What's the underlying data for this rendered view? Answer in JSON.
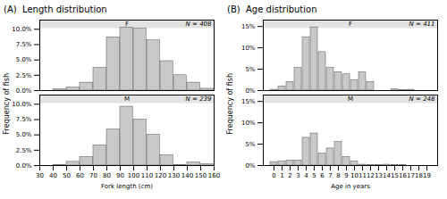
{
  "chart_data": [
    {
      "type": "bar",
      "title": "(A)  Length distribution",
      "ylabel": "Frequency of fish",
      "subtitle": "F",
      "annotations": [
        "N = 408"
      ],
      "x": [
        30,
        40,
        50,
        60,
        70,
        80,
        90,
        100,
        110,
        120,
        130,
        140,
        150
      ],
      "values": [
        0.0,
        0.002,
        0.005,
        0.013,
        0.037,
        0.087,
        0.103,
        0.101,
        0.082,
        0.048,
        0.025,
        0.013,
        0.003
      ],
      "color": "#c8c8c8",
      "xlim": [
        30,
        160
      ],
      "xticks": [
        30,
        40,
        50,
        60,
        70,
        80,
        90,
        100,
        110,
        120,
        130,
        140,
        150,
        160
      ],
      "ylim": [
        0,
        0.115
      ],
      "yticks": [
        {
          "value": 0.0,
          "label": "0.0%"
        },
        {
          "value": 0.025,
          "label": "2.5%"
        },
        {
          "value": 0.05,
          "label": "5.0%"
        },
        {
          "value": 0.075,
          "label": "7.5%"
        },
        {
          "value": 0.1,
          "label": "10.0%"
        }
      ],
      "grid": false,
      "tick_labels": "y"
    },
    {
      "type": "bar",
      "xlabel": "Fork length (cm)",
      "subtitle": "M",
      "annotations": [
        "N = 239"
      ],
      "x": [
        30,
        40,
        50,
        60,
        70,
        80,
        90,
        100,
        110,
        120,
        130,
        140,
        150
      ],
      "values": [
        0.0,
        0.001,
        0.006,
        0.014,
        0.033,
        0.059,
        0.096,
        0.075,
        0.05,
        0.017,
        0.001,
        0.005,
        0.002
      ],
      "color": "#c8c8c8",
      "xlim": [
        30,
        160
      ],
      "xticks": [
        30,
        40,
        50,
        60,
        70,
        80,
        90,
        100,
        110,
        120,
        130,
        140,
        150,
        160
      ],
      "ylim": [
        0,
        0.115
      ],
      "yticks": [
        {
          "value": 0.0,
          "label": "0.0%"
        },
        {
          "value": 0.025,
          "label": "2.5%"
        },
        {
          "value": 0.05,
          "label": "5.0%"
        },
        {
          "value": 0.075,
          "label": "7.5%"
        },
        {
          "value": 0.1,
          "label": "10.0%"
        }
      ],
      "grid": false
    },
    {
      "type": "bar",
      "title": "(B)  Age distribution",
      "ylabel": "Frequency of fish",
      "subtitle": "F",
      "annotations": [
        "N = 411"
      ],
      "categories": [
        "0",
        "1",
        "2",
        "3",
        "4",
        "5",
        "6",
        "7",
        "8",
        "9",
        "10",
        "11",
        "12",
        "13",
        "14",
        "15",
        "16",
        "17",
        "18",
        "19"
      ],
      "values": [
        0.002,
        0.01,
        0.02,
        0.053,
        0.125,
        0.148,
        0.09,
        0.053,
        0.043,
        0.038,
        0.024,
        0.043,
        0.02,
        0.0,
        0.0,
        0.003,
        0.001,
        0.002,
        0.0,
        0.0
      ],
      "color": "#c8c8c8",
      "ylim": [
        0,
        0.165
      ],
      "yticks": [
        {
          "value": 0.0,
          "label": "0%"
        },
        {
          "value": 0.05,
          "label": "5%"
        },
        {
          "value": 0.1,
          "label": "10%"
        },
        {
          "value": 0.15,
          "label": "15%"
        }
      ],
      "grid": false,
      "tick_labels": "y"
    },
    {
      "type": "bar",
      "xlabel": "Age in years",
      "subtitle": "M",
      "annotations": [
        "N = 248"
      ],
      "categories": [
        "0",
        "1",
        "2",
        "3",
        "4",
        "5",
        "6",
        "7",
        "8",
        "9",
        "10",
        "11",
        "12",
        "13",
        "14",
        "15",
        "16",
        "17",
        "18",
        "19"
      ],
      "values": [
        0.008,
        0.01,
        0.012,
        0.012,
        0.065,
        0.075,
        0.028,
        0.04,
        0.055,
        0.02,
        0.01,
        0.002,
        0.001,
        0.001,
        0.002,
        0.001,
        0.001,
        0.0,
        0.0,
        0.0
      ],
      "color": "#c8c8c8",
      "ylim": [
        0,
        0.165
      ],
      "yticks": [
        {
          "value": 0.0,
          "label": "0%"
        },
        {
          "value": 0.05,
          "label": "5%"
        },
        {
          "value": 0.1,
          "label": "10%"
        },
        {
          "value": 0.15,
          "label": "15%"
        }
      ],
      "grid": false
    }
  ]
}
